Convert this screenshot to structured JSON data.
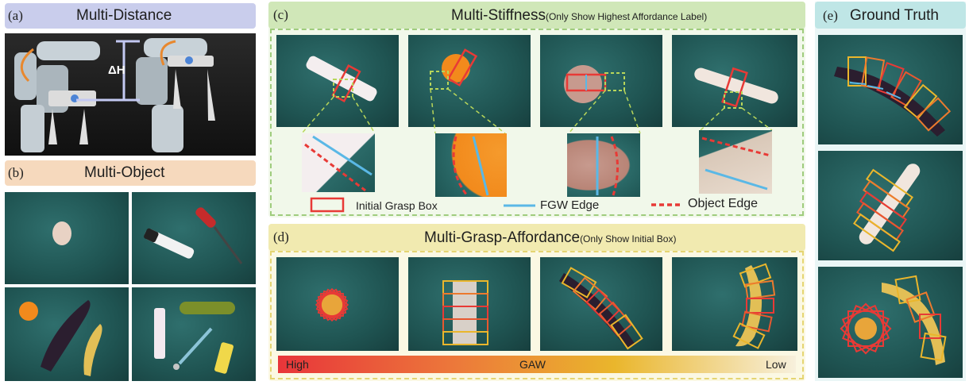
{
  "panels": {
    "a": {
      "letter": "(a)",
      "title": "Multi-Distance",
      "annotation": "ΔH"
    },
    "b": {
      "letter": "(b)",
      "title": "Multi-Object"
    },
    "c": {
      "letter": "(c)",
      "title": "Multi-Stiffness",
      "subtitle": "(Only Show Highest Affordance Label)"
    },
    "d": {
      "letter": "(d)",
      "title": "Multi-Grasp-Affordance",
      "subtitle": "(Only Show Initial Box)"
    },
    "e": {
      "letter": "(e)",
      "title": "Ground Truth"
    }
  },
  "legend": {
    "initial_grasp_box": "Initial Grasp Box",
    "fgw_edge": "FGW Edge",
    "object_edge": "Object Edge"
  },
  "gaw_bar": {
    "high": "High",
    "center": "GAW",
    "low": "Low"
  },
  "colors": {
    "panel_a_header": "#c9cdec",
    "panel_b_header": "#f6d9bd",
    "panel_c_header": "#d0e7b8",
    "panel_d_header": "#f1eab0",
    "panel_e_header": "#bfe6e6",
    "panel_c_bg": "#f1f8ea",
    "panel_d_bg": "#fbf8e3",
    "panel_e_bg": "#eaf6f6",
    "dashed_border_c": "#9fcc7d",
    "dashed_border_d": "#e5d572",
    "grasp_red": "#e83a36",
    "grasp_yellow": "#eab62c",
    "grasp_orange": "#ec7a2e",
    "fgw_blue": "#5ab8e6",
    "zoom_green": "#b8d65a"
  }
}
